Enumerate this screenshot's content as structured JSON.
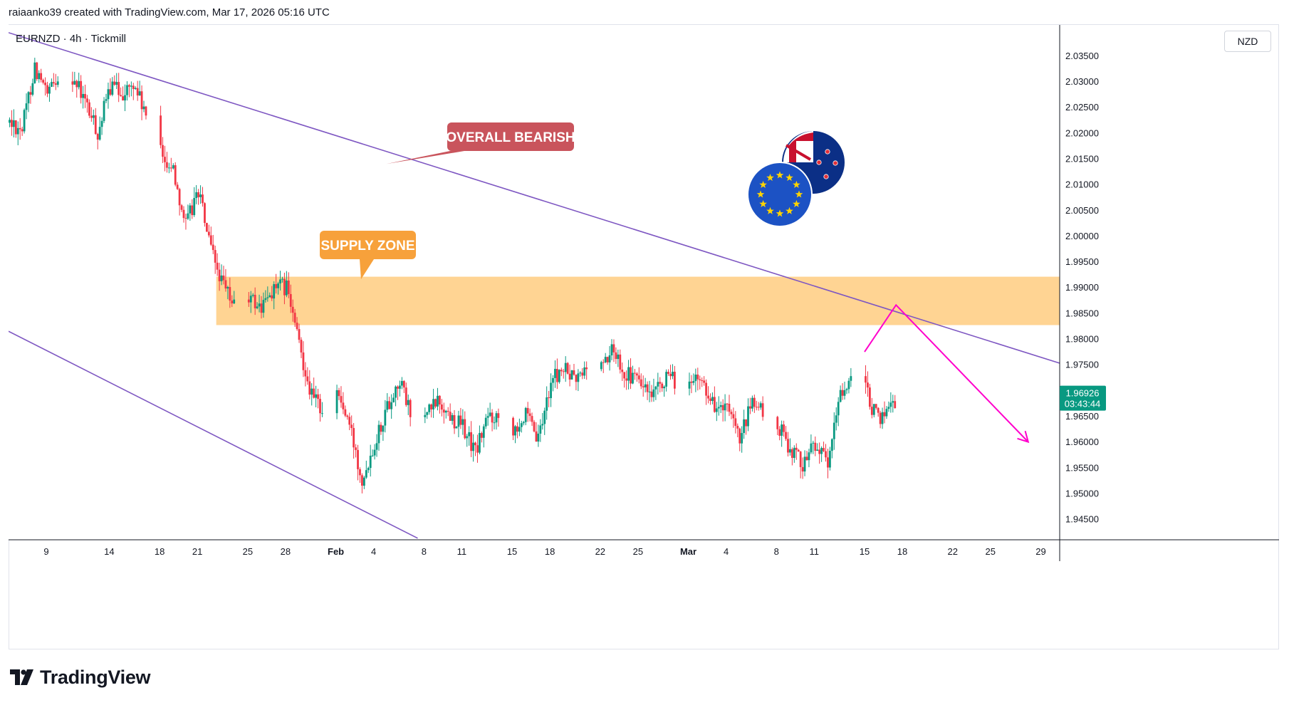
{
  "header": {
    "credit": "raiaanko39 created with TradingView.com, Mar 17, 2026 05:16 UTC",
    "symbol_line": "EURNZD · 4h · Tickmill",
    "currency_button": "NZD"
  },
  "footer": {
    "brand": "TradingView"
  },
  "colors": {
    "up": "#089981",
    "down": "#f23645",
    "channel": "#7e57c2",
    "zone": "#ffcc80",
    "arrow": "#ff00cc",
    "bearish_callout": "#c9545c",
    "supply_callout": "#f7a13b"
  },
  "chart_data": {
    "type": "candlestick",
    "timeframe": "4h",
    "ylim": [
      1.941,
      2.041
    ],
    "y_ticks": [
      1.945,
      1.95,
      1.955,
      1.96,
      1.965,
      1.97,
      1.975,
      1.98,
      1.985,
      1.99,
      1.995,
      2.0,
      2.005,
      2.01,
      2.015,
      2.02,
      2.025,
      2.03,
      2.035
    ],
    "y_tick_labels": [
      "1.94500",
      "1.95000",
      "1.95500",
      "1.96000",
      "1.96500",
      "1.97000",
      "1.97500",
      "1.98000",
      "1.98500",
      "1.99000",
      "1.99500",
      "2.00000",
      "2.00500",
      "2.01000",
      "2.01500",
      "2.02000",
      "2.02500",
      "2.03000",
      "2.03500"
    ],
    "x_start": "2026-01-06T00:00",
    "x_end": "2026-03-30T12:00",
    "x_ticks": [
      {
        "date": "2026-01-09",
        "label": "9"
      },
      {
        "date": "2026-01-14",
        "label": "14"
      },
      {
        "date": "2026-01-18",
        "label": "18"
      },
      {
        "date": "2026-01-21",
        "label": "21"
      },
      {
        "date": "2026-01-25",
        "label": "25"
      },
      {
        "date": "2026-01-28",
        "label": "28"
      },
      {
        "date": "2026-02-01",
        "label": "Feb",
        "bold": true
      },
      {
        "date": "2026-02-04",
        "label": "4"
      },
      {
        "date": "2026-02-08",
        "label": "8"
      },
      {
        "date": "2026-02-11",
        "label": "11"
      },
      {
        "date": "2026-02-15",
        "label": "15"
      },
      {
        "date": "2026-02-18",
        "label": "18"
      },
      {
        "date": "2026-02-22",
        "label": "22"
      },
      {
        "date": "2026-02-25",
        "label": "25"
      },
      {
        "date": "2026-03-01",
        "label": "Mar",
        "bold": true
      },
      {
        "date": "2026-03-04",
        "label": "4"
      },
      {
        "date": "2026-03-08",
        "label": "8"
      },
      {
        "date": "2026-03-11",
        "label": "11"
      },
      {
        "date": "2026-03-15",
        "label": "15"
      },
      {
        "date": "2026-03-18",
        "label": "18"
      },
      {
        "date": "2026-03-22",
        "label": "22"
      },
      {
        "date": "2026-03-25",
        "label": "25"
      },
      {
        "date": "2026-03-29",
        "label": "29"
      }
    ],
    "price_path": [
      [
        "2026-01-06",
        2.022
      ],
      [
        "2026-01-07",
        2.021
      ],
      [
        "2026-01-08",
        2.033
      ],
      [
        "2026-01-09",
        2.027
      ],
      [
        "2026-01-10",
        2.032
      ],
      [
        "2026-01-11",
        2.031
      ],
      [
        "2026-01-12",
        2.026
      ],
      [
        "2026-01-13",
        2.02
      ],
      [
        "2026-01-14",
        2.029
      ],
      [
        "2026-01-15",
        2.028
      ],
      [
        "2026-01-16",
        2.029
      ],
      [
        "2026-01-17",
        2.022
      ],
      [
        "2026-01-18",
        2.016
      ],
      [
        "2026-01-19",
        2.013
      ],
      [
        "2026-01-20",
        2.002
      ],
      [
        "2026-01-21",
        2.009
      ],
      [
        "2026-01-22",
        1.997
      ],
      [
        "2026-01-23",
        1.99
      ],
      [
        "2026-01-24",
        1.986
      ],
      [
        "2026-01-25",
        1.988
      ],
      [
        "2026-01-26",
        1.986
      ],
      [
        "2026-01-27",
        1.99
      ],
      [
        "2026-01-28",
        1.99
      ],
      [
        "2026-01-29",
        1.979
      ],
      [
        "2026-01-30",
        1.969
      ],
      [
        "2026-01-31",
        1.966
      ],
      [
        "2026-02-01",
        1.97
      ],
      [
        "2026-02-02",
        1.963
      ],
      [
        "2026-02-03",
        1.953
      ],
      [
        "2026-02-04",
        1.96
      ],
      [
        "2026-02-05",
        1.967
      ],
      [
        "2026-02-06",
        1.972
      ],
      [
        "2026-02-07",
        1.964
      ],
      [
        "2026-02-08",
        1.965
      ],
      [
        "2026-02-09",
        1.968
      ],
      [
        "2026-02-10",
        1.965
      ],
      [
        "2026-02-11",
        1.963
      ],
      [
        "2026-02-12",
        1.958
      ],
      [
        "2026-02-13",
        1.965
      ],
      [
        "2026-02-14",
        1.965
      ],
      [
        "2026-02-15",
        1.963
      ],
      [
        "2026-02-16",
        1.965
      ],
      [
        "2026-02-17",
        1.96
      ],
      [
        "2026-02-18",
        1.972
      ],
      [
        "2026-02-19",
        1.974
      ],
      [
        "2026-02-20",
        1.972
      ],
      [
        "2026-02-21",
        1.975
      ],
      [
        "2026-02-22",
        1.975
      ],
      [
        "2026-02-23",
        1.978
      ],
      [
        "2026-02-24",
        1.973
      ],
      [
        "2026-02-25",
        1.972
      ],
      [
        "2026-02-26",
        1.968
      ],
      [
        "2026-02-27",
        1.972
      ],
      [
        "2026-02-28",
        1.972
      ],
      [
        "2026-03-01",
        1.971
      ],
      [
        "2026-03-02",
        1.972
      ],
      [
        "2026-03-03",
        1.967
      ],
      [
        "2026-03-04",
        1.966
      ],
      [
        "2026-03-05",
        1.96
      ],
      [
        "2026-03-06",
        1.968
      ],
      [
        "2026-03-07",
        1.965
      ],
      [
        "2026-03-08",
        1.963
      ],
      [
        "2026-03-09",
        1.959
      ],
      [
        "2026-03-10",
        1.956
      ],
      [
        "2026-03-11",
        1.96
      ],
      [
        "2026-03-12",
        1.955
      ],
      [
        "2026-03-13",
        1.97
      ],
      [
        "2026-03-14",
        1.972
      ],
      [
        "2026-03-15",
        1.97
      ],
      [
        "2026-03-16",
        1.964
      ],
      [
        "2026-03-17",
        1.968
      ]
    ],
    "last_price": {
      "label": "1.96926",
      "countdown": "03:43:44"
    },
    "drawings": {
      "upper_channel": [
        [
          "2026-01-06T00:00",
          2.0395
        ],
        [
          "2026-03-30T12:00",
          1.9753
        ]
      ],
      "lower_channel": [
        [
          "2026-01-06T00:00",
          1.9815
        ],
        [
          "2026-02-07T12:00",
          1.9413
        ]
      ],
      "supply_zone": {
        "x_start": "2026-01-22T12:00",
        "x_end": "2026-03-30T12:00",
        "y_low": 1.9827,
        "y_high": 1.9921
      },
      "projection": [
        [
          "2026-03-15T00:00",
          1.9775
        ],
        [
          "2026-03-17T12:00",
          1.9866
        ],
        [
          "2026-03-28T00:00",
          1.96
        ]
      ]
    },
    "annotations": [
      {
        "text": "OVERALL BEARISH",
        "type": "callout",
        "anchor": [
          "2026-02-05",
          2.014
        ]
      },
      {
        "text": "SUPPLY ZONE",
        "type": "callout",
        "anchor": [
          "2026-02-03",
          1.9916
        ]
      }
    ],
    "flag_icons": [
      "eu-flag-icon",
      "nz-flag-icon"
    ]
  }
}
